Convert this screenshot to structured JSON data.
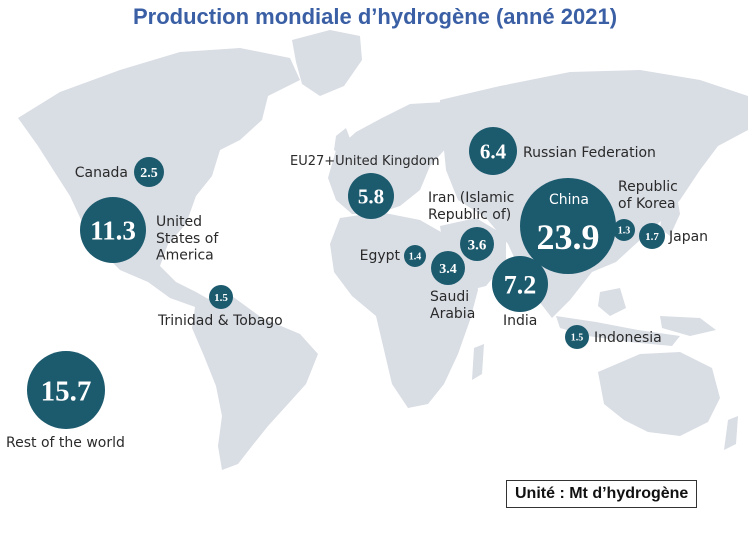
{
  "title": "Production mondiale d’hydrogène (anné 2021)",
  "unit_note": "Unité : Mt d’hydrogène",
  "colors": {
    "bubble": "#1c5a6e",
    "land": "#d9dde4",
    "title": "#3a5fa5"
  },
  "countries": [
    {
      "name": "Canada",
      "value": "2.5",
      "label_lines": [
        "Canada"
      ]
    },
    {
      "name": "United States of America",
      "value": "11.3",
      "label_lines": [
        "United",
        "States of",
        "America"
      ]
    },
    {
      "name": "Trinidad & Tobago",
      "value": "1.5",
      "label_lines": [
        "Trinidad & Tobago"
      ]
    },
    {
      "name": "Rest of the world",
      "value": "15.7",
      "label_lines": [
        "Rest of the world"
      ]
    },
    {
      "name": "EU27+United Kingdom",
      "value": "5.8",
      "label_lines": [
        "EU27+United Kingdom"
      ]
    },
    {
      "name": "Russian Federation",
      "value": "6.4",
      "label_lines": [
        "Russian Federation"
      ]
    },
    {
      "name": "Iran (Islamic Republic of)",
      "value": "3.6",
      "label_lines": [
        "Iran (Islamic",
        "Republic of)"
      ]
    },
    {
      "name": "Egypt",
      "value": "1.4",
      "label_lines": [
        "Egypt"
      ]
    },
    {
      "name": "Saudi Arabia",
      "value": "3.4",
      "label_lines": [
        "Saudi",
        "Arabia"
      ]
    },
    {
      "name": "India",
      "value": "7.2",
      "label_lines": [
        "India"
      ]
    },
    {
      "name": "China",
      "value": "23.9",
      "label_lines": [
        "China"
      ]
    },
    {
      "name": "Republic of Korea",
      "value": "1.3",
      "label_lines": [
        "Republic",
        "of Korea"
      ]
    },
    {
      "name": "Japan",
      "value": "1.7",
      "label_lines": [
        "Japan"
      ]
    },
    {
      "name": "Indonesia",
      "value": "1.5",
      "label_lines": [
        "Indonesia"
      ]
    }
  ]
}
